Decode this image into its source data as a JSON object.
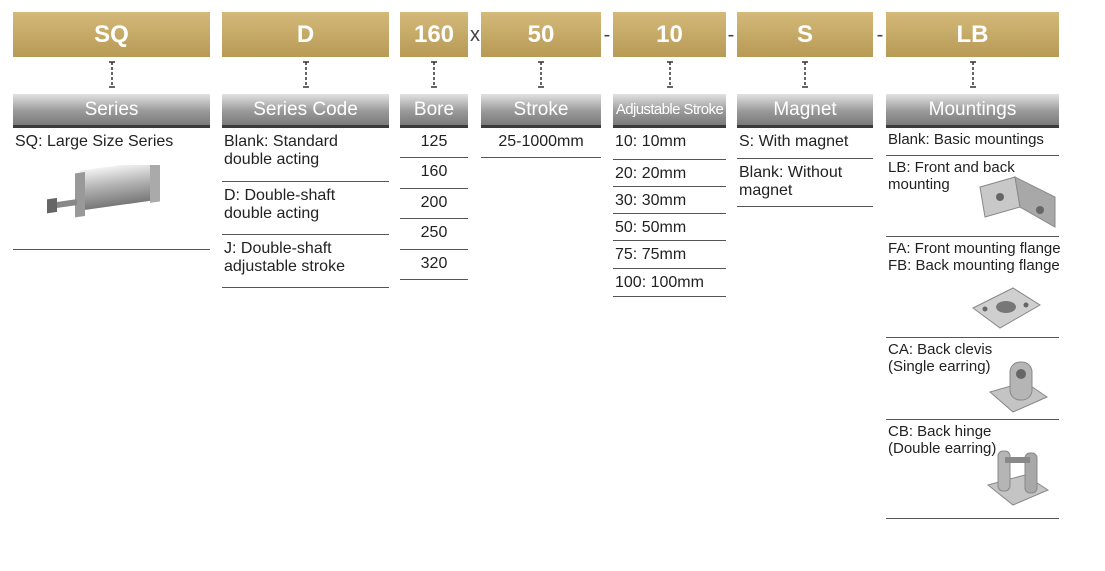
{
  "code": [
    "SQ",
    "D",
    "160",
    "x",
    "50",
    "-",
    "10",
    "-",
    "S",
    "-",
    "LB"
  ],
  "columns": [
    {
      "header": "Series",
      "items": [
        [
          "SQ:  Large Size Series"
        ]
      ]
    },
    {
      "header": "Series Code",
      "items": [
        [
          "Blank: Standard",
          "double acting"
        ],
        [
          "D: Double-shaft",
          "double acting"
        ],
        [
          "J: Double-shaft",
          "adjustable stroke"
        ]
      ]
    },
    {
      "header": "Bore",
      "items": [
        [
          "125"
        ],
        [
          "160"
        ],
        [
          "200"
        ],
        [
          "250"
        ],
        [
          "320"
        ]
      ]
    },
    {
      "header": "Stroke",
      "items": [
        [
          "25-1000mm"
        ]
      ]
    },
    {
      "header": "Adjustable Stroke",
      "items": [
        [
          "10: 10mm"
        ],
        [
          "20: 20mm"
        ],
        [
          "30: 30mm"
        ],
        [
          "50: 50mm"
        ],
        [
          "75: 75mm"
        ],
        [
          "100: 100mm"
        ]
      ]
    },
    {
      "header": "Magnet",
      "items": [
        [
          "S: With magnet"
        ],
        [
          "Blank: Without",
          "magnet"
        ]
      ]
    },
    {
      "header": "Mountings",
      "items": [
        [
          "Blank: Basic mountings"
        ],
        [
          "LB: Front and back",
          "mounting"
        ],
        [
          "FA: Front mounting flange",
          "FB: Back mounting flange"
        ],
        [
          "CA: Back clevis",
          "(Single earring)"
        ],
        [
          "CB: Back hinge",
          "(Double earring)"
        ]
      ]
    }
  ]
}
